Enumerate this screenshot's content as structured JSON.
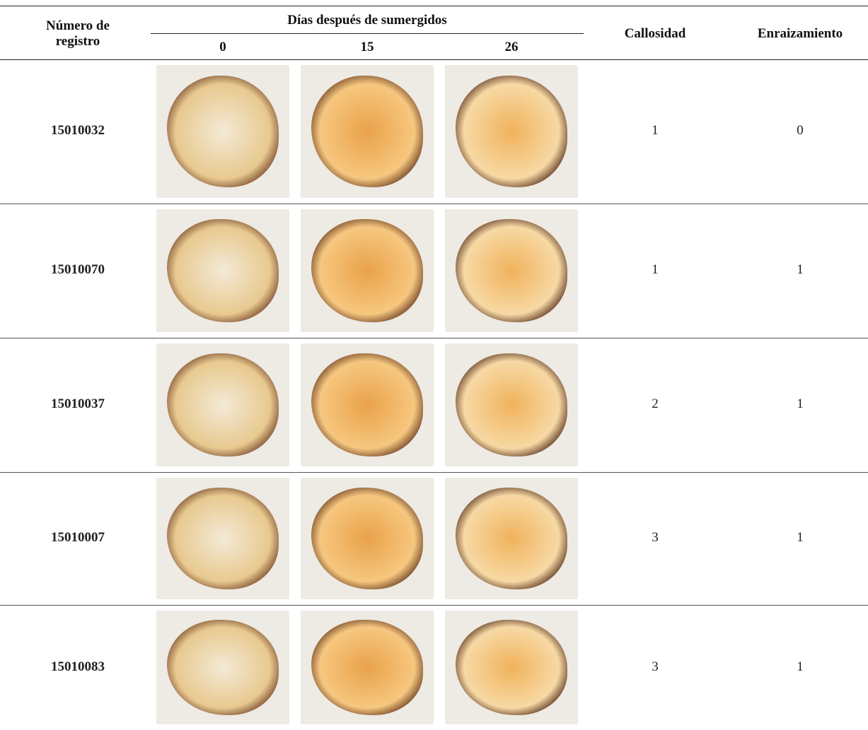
{
  "table": {
    "header": {
      "registro": "Número de\nregistro",
      "dias": "Días después de sumergidos",
      "days": [
        "0",
        "15",
        "26"
      ],
      "callosidad": "Callosidad",
      "enraizamiento": "Enraizamiento"
    },
    "rows": [
      {
        "registro": "15010032",
        "callosidad": "1",
        "enraizamiento": "0"
      },
      {
        "registro": "15010070",
        "callosidad": "1",
        "enraizamiento": "1"
      },
      {
        "registro": "15010037",
        "callosidad": "2",
        "enraizamiento": "1"
      },
      {
        "registro": "15010007",
        "callosidad": "3",
        "enraizamiento": "1"
      },
      {
        "registro": "15010083",
        "callosidad": "3",
        "enraizamiento": "1"
      }
    ]
  }
}
